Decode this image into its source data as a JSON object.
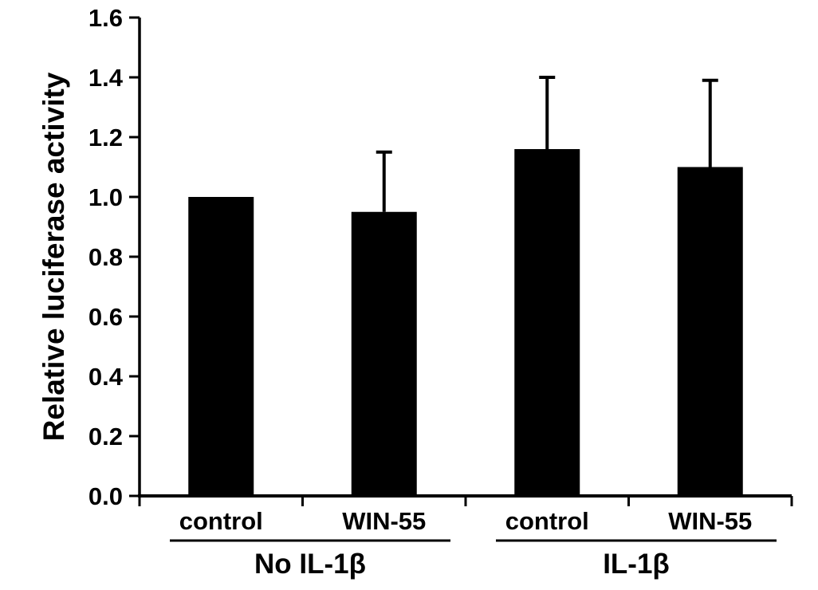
{
  "figure": {
    "background_color": "#ffffff"
  },
  "chart_data": {
    "type": "bar",
    "title": "",
    "xlabel": "",
    "ylabel": "Relative luciferase activity",
    "categories": [
      "control",
      "WIN-55",
      "control",
      "WIN-55"
    ],
    "values": [
      1.0,
      0.95,
      1.16,
      1.1
    ],
    "errors_plus": [
      0,
      0.2,
      0.24,
      0.29
    ],
    "groups": [
      {
        "label": "No IL-1β",
        "span": [
          0,
          1
        ]
      },
      {
        "label": "IL-1β",
        "span": [
          2,
          3
        ]
      }
    ],
    "ylim": [
      0.0,
      1.6
    ],
    "ytick_step": 0.2,
    "ytick_labels": [
      "0.0",
      "0.2",
      "0.4",
      "0.6",
      "0.8",
      "1.0",
      "1.2",
      "1.4",
      "1.6"
    ],
    "grid": false,
    "legend": null,
    "bar_color": "#000000",
    "error_bar_color": "#000000",
    "axis_color": "#000000",
    "text_color": "#000000"
  }
}
